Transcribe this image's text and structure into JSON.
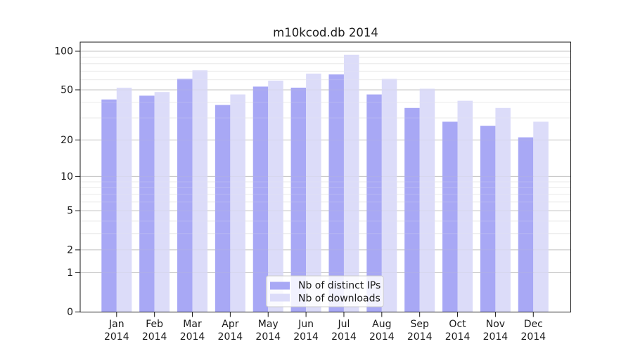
{
  "chart_data": {
    "type": "bar",
    "title": "m10kcod.db 2014",
    "categories": [
      "Jan 2014",
      "Feb 2014",
      "Mar 2014",
      "Apr 2014",
      "May 2014",
      "Jun 2014",
      "Jul 2014",
      "Aug 2014",
      "Sep 2014",
      "Oct 2014",
      "Nov 2014",
      "Dec 2014"
    ],
    "series": [
      {
        "key": "distinct-ips",
        "name": "Nb of distinct IPs",
        "color": "#a8a8f5",
        "values": [
          42,
          45,
          61,
          38,
          53,
          52,
          66,
          46,
          36,
          28,
          26,
          21
        ]
      },
      {
        "key": "downloads",
        "name": "Nb of downloads",
        "color": "#dcdcf9",
        "values": [
          52,
          48,
          71,
          46,
          59,
          67,
          94,
          61,
          51,
          41,
          36,
          28
        ]
      }
    ],
    "xlabel": "",
    "ylabel": "",
    "yscale": "log(1+x)",
    "ylim": [
      0,
      118
    ],
    "yticks": [
      0,
      1,
      2,
      5,
      10,
      20,
      50,
      100
    ],
    "yticks_minor": [
      3,
      4,
      6,
      7,
      8,
      9,
      30,
      40,
      60,
      70,
      80,
      90
    ],
    "grid": true,
    "legend_position": "lower center"
  },
  "style": {
    "background": "#ffffff",
    "grid_major_color": "#c3c3c3",
    "grid_minor_color": "#eaeaea",
    "spine_color": "#1a1a1a",
    "text_color": "#1a1a1a",
    "legend_bg": "rgba(255,255,255,0.85)",
    "legend_border": "#cccccc"
  }
}
